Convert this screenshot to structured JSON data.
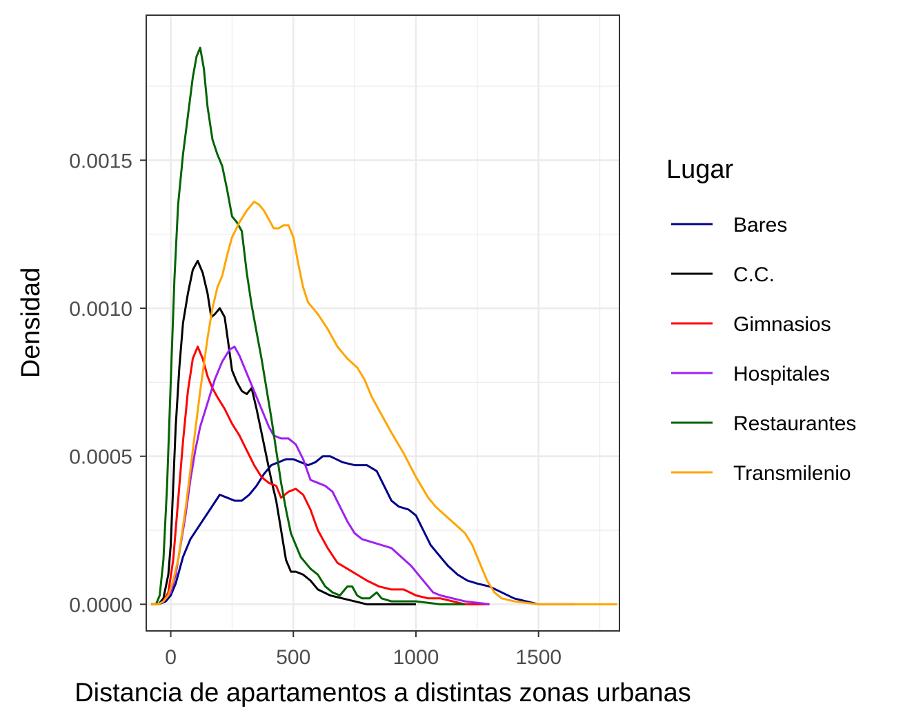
{
  "chart_data": {
    "type": "line",
    "title": "",
    "xlabel": "Distancia de apartamentos a distintas zonas urbanas",
    "ylabel": "Densidad",
    "xlim": [
      -100,
      1830
    ],
    "ylim": [
      -9e-05,
      0.00199
    ],
    "x_ticks": [
      0,
      500,
      1000,
      1500
    ],
    "x_tick_labels": [
      "0",
      "500",
      "1000",
      "1500"
    ],
    "y_ticks": [
      0,
      0.0005,
      0.001,
      0.0015
    ],
    "y_tick_labels": [
      "0.0000",
      "0.0005",
      "0.0010",
      "0.0015"
    ],
    "grid": true,
    "legend": {
      "title": "Lugar",
      "position": "right"
    },
    "series": [
      {
        "name": "Bares",
        "color": "#00008b",
        "points": [
          [
            -80,
            0
          ],
          [
            -50,
            0
          ],
          [
            -20,
            1e-05
          ],
          [
            0,
            3e-05
          ],
          [
            20,
            7e-05
          ],
          [
            50,
            0.00016
          ],
          [
            80,
            0.00022
          ],
          [
            120,
            0.00027
          ],
          [
            160,
            0.00032
          ],
          [
            200,
            0.00037
          ],
          [
            230,
            0.00036
          ],
          [
            260,
            0.00035
          ],
          [
            290,
            0.00035
          ],
          [
            320,
            0.00037
          ],
          [
            350,
            0.0004
          ],
          [
            380,
            0.00044
          ],
          [
            410,
            0.00047
          ],
          [
            440,
            0.00048
          ],
          [
            470,
            0.00049
          ],
          [
            500,
            0.00049
          ],
          [
            530,
            0.00048
          ],
          [
            560,
            0.00047
          ],
          [
            590,
            0.00048
          ],
          [
            620,
            0.0005
          ],
          [
            650,
            0.0005
          ],
          [
            700,
            0.00048
          ],
          [
            750,
            0.00047
          ],
          [
            800,
            0.00047
          ],
          [
            840,
            0.00045
          ],
          [
            870,
            0.0004
          ],
          [
            900,
            0.00035
          ],
          [
            930,
            0.00033
          ],
          [
            970,
            0.00032
          ],
          [
            1000,
            0.0003
          ],
          [
            1030,
            0.00025
          ],
          [
            1060,
            0.0002
          ],
          [
            1100,
            0.00016
          ],
          [
            1130,
            0.00013
          ],
          [
            1170,
            0.0001
          ],
          [
            1210,
            8e-05
          ],
          [
            1250,
            7e-05
          ],
          [
            1300,
            6e-05
          ],
          [
            1350,
            4e-05
          ],
          [
            1400,
            2e-05
          ],
          [
            1450,
            1e-05
          ],
          [
            1500,
            0
          ],
          [
            1600,
            0
          ],
          [
            1650,
            0
          ]
        ]
      },
      {
        "name": "C.C.",
        "color": "#000000",
        "points": [
          [
            -80,
            0
          ],
          [
            -50,
            0
          ],
          [
            -30,
            2e-05
          ],
          [
            -10,
            0.0001
          ],
          [
            0,
            0.0002
          ],
          [
            10,
            0.0004
          ],
          [
            20,
            0.0006
          ],
          [
            35,
            0.0008
          ],
          [
            50,
            0.00095
          ],
          [
            70,
            0.00105
          ],
          [
            90,
            0.00113
          ],
          [
            110,
            0.00116
          ],
          [
            130,
            0.00112
          ],
          [
            150,
            0.00105
          ],
          [
            165,
            0.00097
          ],
          [
            180,
            0.00098
          ],
          [
            200,
            0.001
          ],
          [
            220,
            0.00097
          ],
          [
            235,
            0.00088
          ],
          [
            250,
            0.00079
          ],
          [
            270,
            0.00075
          ],
          [
            290,
            0.00072
          ],
          [
            310,
            0.00071
          ],
          [
            330,
            0.00073
          ],
          [
            350,
            0.00066
          ],
          [
            370,
            0.00058
          ],
          [
            390,
            0.0005
          ],
          [
            410,
            0.00042
          ],
          [
            430,
            0.00035
          ],
          [
            450,
            0.00025
          ],
          [
            470,
            0.00015
          ],
          [
            490,
            0.00011
          ],
          [
            510,
            0.00011
          ],
          [
            540,
            0.0001
          ],
          [
            570,
            8e-05
          ],
          [
            600,
            5e-05
          ],
          [
            650,
            3e-05
          ],
          [
            700,
            2e-05
          ],
          [
            750,
            1e-05
          ],
          [
            800,
            0
          ],
          [
            900,
            0
          ],
          [
            1000,
            0
          ]
        ]
      },
      {
        "name": "Gimnasios",
        "color": "#ff0000",
        "points": [
          [
            -80,
            0
          ],
          [
            -50,
            0
          ],
          [
            -30,
            1e-05
          ],
          [
            -10,
            4e-05
          ],
          [
            10,
            0.00015
          ],
          [
            30,
            0.00035
          ],
          [
            50,
            0.00055
          ],
          [
            70,
            0.00072
          ],
          [
            90,
            0.00083
          ],
          [
            110,
            0.00087
          ],
          [
            130,
            0.00083
          ],
          [
            150,
            0.00077
          ],
          [
            170,
            0.00073
          ],
          [
            190,
            0.0007
          ],
          [
            220,
            0.00066
          ],
          [
            250,
            0.00061
          ],
          [
            280,
            0.00057
          ],
          [
            310,
            0.00052
          ],
          [
            340,
            0.00047
          ],
          [
            370,
            0.00043
          ],
          [
            400,
            0.00041
          ],
          [
            430,
            0.0004
          ],
          [
            450,
            0.00036
          ],
          [
            480,
            0.00038
          ],
          [
            510,
            0.00039
          ],
          [
            540,
            0.00037
          ],
          [
            570,
            0.00032
          ],
          [
            600,
            0.00025
          ],
          [
            640,
            0.00019
          ],
          [
            680,
            0.00014
          ],
          [
            720,
            0.00012
          ],
          [
            760,
            0.0001
          ],
          [
            800,
            8e-05
          ],
          [
            850,
            6e-05
          ],
          [
            900,
            5e-05
          ],
          [
            950,
            5e-05
          ],
          [
            1000,
            3e-05
          ],
          [
            1050,
            2e-05
          ],
          [
            1100,
            2e-05
          ],
          [
            1150,
            1e-05
          ],
          [
            1200,
            0
          ],
          [
            1300,
            0
          ]
        ]
      },
      {
        "name": "Hospitales",
        "color": "#a020f0",
        "points": [
          [
            -80,
            0
          ],
          [
            -50,
            0
          ],
          [
            -30,
            1e-05
          ],
          [
            0,
            4e-05
          ],
          [
            20,
            0.0001
          ],
          [
            40,
            0.0002
          ],
          [
            60,
            0.0003
          ],
          [
            80,
            0.00042
          ],
          [
            100,
            0.00052
          ],
          [
            120,
            0.0006
          ],
          [
            150,
            0.00068
          ],
          [
            180,
            0.00076
          ],
          [
            210,
            0.00082
          ],
          [
            240,
            0.00086
          ],
          [
            260,
            0.00087
          ],
          [
            280,
            0.00084
          ],
          [
            300,
            0.0008
          ],
          [
            320,
            0.00076
          ],
          [
            340,
            0.00072
          ],
          [
            360,
            0.00068
          ],
          [
            380,
            0.00064
          ],
          [
            400,
            0.0006
          ],
          [
            420,
            0.00057
          ],
          [
            450,
            0.00056
          ],
          [
            480,
            0.00056
          ],
          [
            510,
            0.00054
          ],
          [
            540,
            0.00049
          ],
          [
            570,
            0.00042
          ],
          [
            600,
            0.00041
          ],
          [
            630,
            0.0004
          ],
          [
            660,
            0.00038
          ],
          [
            690,
            0.00033
          ],
          [
            720,
            0.00028
          ],
          [
            750,
            0.00024
          ],
          [
            780,
            0.00022
          ],
          [
            820,
            0.00021
          ],
          [
            860,
            0.0002
          ],
          [
            900,
            0.00019
          ],
          [
            940,
            0.00016
          ],
          [
            980,
            0.00013
          ],
          [
            1010,
            0.0001
          ],
          [
            1040,
            7e-05
          ],
          [
            1070,
            4e-05
          ],
          [
            1100,
            3e-05
          ],
          [
            1150,
            2e-05
          ],
          [
            1200,
            1e-05
          ],
          [
            1300,
            0
          ]
        ]
      },
      {
        "name": "Restaurantes",
        "color": "#006400",
        "points": [
          [
            -80,
            0
          ],
          [
            -60,
            0
          ],
          [
            -45,
            3e-05
          ],
          [
            -30,
            0.00015
          ],
          [
            -15,
            0.0004
          ],
          [
            0,
            0.00075
          ],
          [
            15,
            0.0011
          ],
          [
            30,
            0.00135
          ],
          [
            50,
            0.00152
          ],
          [
            70,
            0.00165
          ],
          [
            90,
            0.00178
          ],
          [
            105,
            0.00185
          ],
          [
            120,
            0.00188
          ],
          [
            135,
            0.00181
          ],
          [
            150,
            0.00168
          ],
          [
            170,
            0.00157
          ],
          [
            190,
            0.00152
          ],
          [
            210,
            0.00148
          ],
          [
            230,
            0.0014
          ],
          [
            250,
            0.00131
          ],
          [
            270,
            0.00129
          ],
          [
            290,
            0.00126
          ],
          [
            310,
            0.00112
          ],
          [
            330,
            0.00101
          ],
          [
            350,
            0.00092
          ],
          [
            370,
            0.00083
          ],
          [
            390,
            0.00073
          ],
          [
            410,
            0.00063
          ],
          [
            430,
            0.00052
          ],
          [
            450,
            0.00041
          ],
          [
            470,
            0.00032
          ],
          [
            490,
            0.00024
          ],
          [
            510,
            0.0002
          ],
          [
            530,
            0.00016
          ],
          [
            550,
            0.00014
          ],
          [
            570,
            0.00012
          ],
          [
            600,
            0.0001
          ],
          [
            630,
            6e-05
          ],
          [
            660,
            4e-05
          ],
          [
            690,
            3e-05
          ],
          [
            720,
            6e-05
          ],
          [
            740,
            6e-05
          ],
          [
            760,
            3e-05
          ],
          [
            780,
            2e-05
          ],
          [
            810,
            2e-05
          ],
          [
            840,
            4e-05
          ],
          [
            860,
            2e-05
          ],
          [
            900,
            1e-05
          ],
          [
            1000,
            1e-05
          ],
          [
            1100,
            0
          ],
          [
            1200,
            0
          ]
        ]
      },
      {
        "name": "Transmilenio",
        "color": "#ffa500",
        "points": [
          [
            -80,
            0
          ],
          [
            -50,
            0
          ],
          [
            -30,
            1e-05
          ],
          [
            -10,
            3e-05
          ],
          [
            10,
            8e-05
          ],
          [
            30,
            0.00015
          ],
          [
            60,
            0.00032
          ],
          [
            90,
            0.00052
          ],
          [
            120,
            0.00072
          ],
          [
            150,
            0.0009
          ],
          [
            170,
            0.001
          ],
          [
            190,
            0.00107
          ],
          [
            210,
            0.00111
          ],
          [
            230,
            0.00118
          ],
          [
            250,
            0.00124
          ],
          [
            280,
            0.00129
          ],
          [
            310,
            0.00133
          ],
          [
            340,
            0.00136
          ],
          [
            360,
            0.00135
          ],
          [
            380,
            0.00133
          ],
          [
            400,
            0.0013
          ],
          [
            420,
            0.00127
          ],
          [
            440,
            0.00127
          ],
          [
            460,
            0.00128
          ],
          [
            480,
            0.00128
          ],
          [
            500,
            0.00124
          ],
          [
            520,
            0.00115
          ],
          [
            540,
            0.00107
          ],
          [
            560,
            0.00102
          ],
          [
            600,
            0.00098
          ],
          [
            640,
            0.00093
          ],
          [
            680,
            0.00087
          ],
          [
            720,
            0.00083
          ],
          [
            760,
            0.0008
          ],
          [
            790,
            0.00076
          ],
          [
            820,
            0.0007
          ],
          [
            860,
            0.00064
          ],
          [
            900,
            0.00058
          ],
          [
            950,
            0.00051
          ],
          [
            1000,
            0.00043
          ],
          [
            1050,
            0.00036
          ],
          [
            1080,
            0.00033
          ],
          [
            1120,
            0.0003
          ],
          [
            1160,
            0.00027
          ],
          [
            1200,
            0.00024
          ],
          [
            1230,
            0.0002
          ],
          [
            1260,
            0.00014
          ],
          [
            1290,
            8e-05
          ],
          [
            1320,
            4e-05
          ],
          [
            1350,
            2e-05
          ],
          [
            1400,
            1e-05
          ],
          [
            1500,
            0
          ],
          [
            1600,
            0
          ],
          [
            1700,
            0
          ],
          [
            1820,
            0
          ]
        ]
      }
    ]
  }
}
